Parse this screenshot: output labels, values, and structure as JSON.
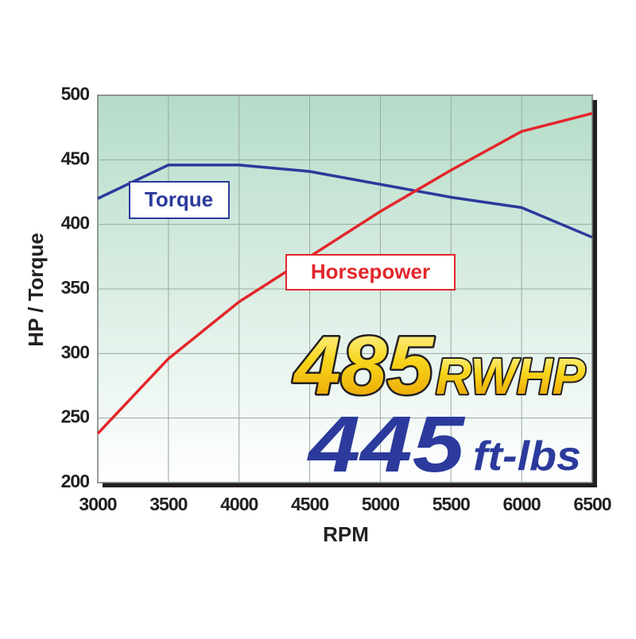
{
  "chart_data": {
    "type": "line",
    "x": [
      3000,
      3500,
      4000,
      4500,
      5000,
      5500,
      6000,
      6500
    ],
    "series": [
      {
        "name": "Torque",
        "color": "#2b3a9c",
        "values": [
          420,
          446,
          446,
          441,
          431,
          421,
          413,
          390
        ]
      },
      {
        "name": "Horsepower",
        "color": "#e3262b",
        "values": [
          238,
          296,
          340,
          375,
          410,
          442,
          472,
          486
        ]
      }
    ],
    "xlim": [
      3000,
      6500
    ],
    "ylim": [
      200,
      500
    ],
    "xticks": [
      3000,
      3500,
      4000,
      4500,
      5000,
      5500,
      6000,
      6500
    ],
    "yticks": [
      200,
      250,
      300,
      350,
      400,
      450,
      500
    ],
    "xlabel": "RPM",
    "ylabel": "HP / Torque",
    "grid": true,
    "annotations": [
      "485",
      "RWHP",
      "445",
      "ft-lbs"
    ]
  }
}
